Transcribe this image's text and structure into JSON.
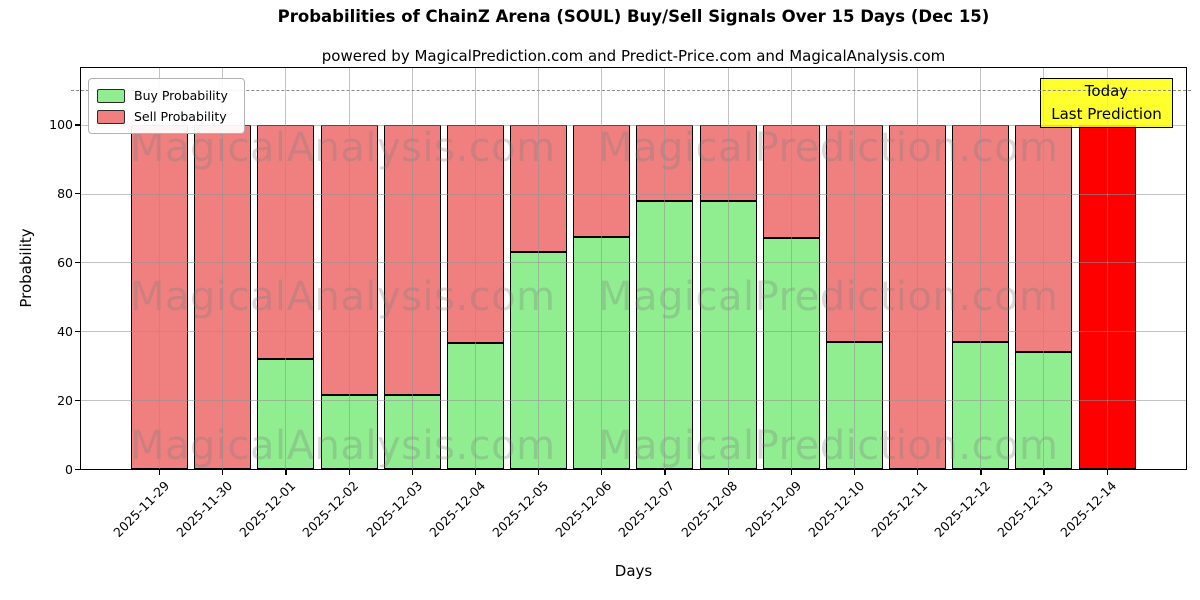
{
  "chart_data": {
    "type": "bar",
    "stacked": true,
    "title": "Probabilities of ChainZ Arena (SOUL) Buy/Sell Signals Over 15 Days (Dec 15)",
    "subtitle": "powered by MagicalPrediction.com and Predict-Price.com and MagicalAnalysis.com",
    "xlabel": "Days",
    "ylabel": "Probability",
    "categories": [
      "2025-11-29",
      "2025-11-30",
      "2025-12-01",
      "2025-12-02",
      "2025-12-03",
      "2025-12-04",
      "2025-12-05",
      "2025-12-06",
      "2025-12-07",
      "2025-12-08",
      "2025-12-09",
      "2025-12-10",
      "2025-12-11",
      "2025-12-12",
      "2025-12-13",
      "2025-12-14"
    ],
    "series": [
      {
        "name": "Buy Probability",
        "color": "#90EE90",
        "values": [
          0,
          0,
          32,
          21.5,
          21.5,
          36.5,
          63,
          67.5,
          78,
          78,
          67,
          37,
          0,
          37,
          34,
          0
        ]
      },
      {
        "name": "Sell Probability",
        "color": "#F08080",
        "values": [
          100,
          100,
          68,
          78.5,
          78.5,
          63.5,
          37,
          32.5,
          22,
          22,
          33,
          63,
          100,
          63,
          66,
          100
        ]
      }
    ],
    "today_bar": {
      "category": "2025-12-14",
      "index": 15,
      "color": "#FF0000",
      "value": 100
    },
    "annotation": {
      "line1": "Today",
      "line2": "Last Prediction",
      "bg_color": "#FFFF00"
    },
    "dashline": {
      "y": 110,
      "style": "dashed",
      "color": "#8a8a8a"
    },
    "ylim": [
      0,
      116.5
    ],
    "yticks": [
      0,
      20,
      40,
      60,
      80,
      100
    ],
    "grid": true,
    "legend": {
      "position": "upper left",
      "labels": [
        "Buy Probability",
        "Sell Probability"
      ]
    },
    "watermarks": {
      "left": "MagicalAnalysis.com",
      "right": "MagicalPrediction.com",
      "rows": 3
    },
    "colors": {
      "axis": "#000000",
      "grid": "#b0b0b0",
      "buy": "#90EE90",
      "sell": "#F08080",
      "today": "#FF0000",
      "annotation_bg": "#FFFF00"
    }
  }
}
